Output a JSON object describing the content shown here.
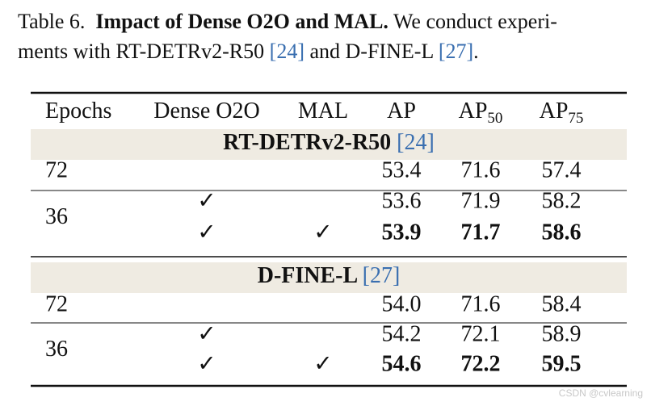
{
  "caption": {
    "label": "Table 6.",
    "title": "Impact of Dense O2O and MAL.",
    "line1": "We conduct experi-",
    "line2": "ments with RT-DETRv2-R50 ",
    "cite1": "[24]",
    "middle": " and D-FINE-L ",
    "cite2": "[27]",
    "end": "."
  },
  "table": {
    "header": [
      {
        "text": "Epochs"
      },
      {
        "text": "Dense O2O"
      },
      {
        "text": "MAL"
      },
      {
        "text": "AP"
      },
      {
        "text": "AP",
        "sub": "50"
      },
      {
        "text": "AP",
        "sub": "75"
      }
    ],
    "groups": [
      {
        "name": "RT-DETRv2-R50 ",
        "cite": "[24]",
        "blocks": [
          {
            "epochs": "72",
            "rows": [
              {
                "cells": [
                  null,
                  null,
                  "53.4",
                  "71.6",
                  "57.4"
                ],
                "bold": false
              }
            ]
          },
          {
            "epochs": "36",
            "rows": [
              {
                "cells": [
                  "✓",
                  null,
                  "53.6",
                  "71.9",
                  "58.2"
                ],
                "bold": false
              },
              {
                "cells": [
                  "✓",
                  "✓",
                  "53.9",
                  "71.7",
                  "58.6"
                ],
                "bold": true
              }
            ]
          }
        ]
      },
      {
        "name": "D-FINE-L ",
        "cite": "[27]",
        "blocks": [
          {
            "epochs": "72",
            "rows": [
              {
                "cells": [
                  null,
                  null,
                  "54.0",
                  "71.6",
                  "58.4"
                ],
                "bold": false
              }
            ]
          },
          {
            "epochs": "36",
            "rows": [
              {
                "cells": [
                  "✓",
                  null,
                  "54.2",
                  "72.1",
                  "58.9"
                ],
                "bold": false
              },
              {
                "cells": [
                  "✓",
                  "✓",
                  "54.6",
                  "72.2",
                  "59.5"
                ],
                "bold": true
              }
            ]
          }
        ]
      }
    ]
  },
  "watermark": "CSDN @cvlearning"
}
